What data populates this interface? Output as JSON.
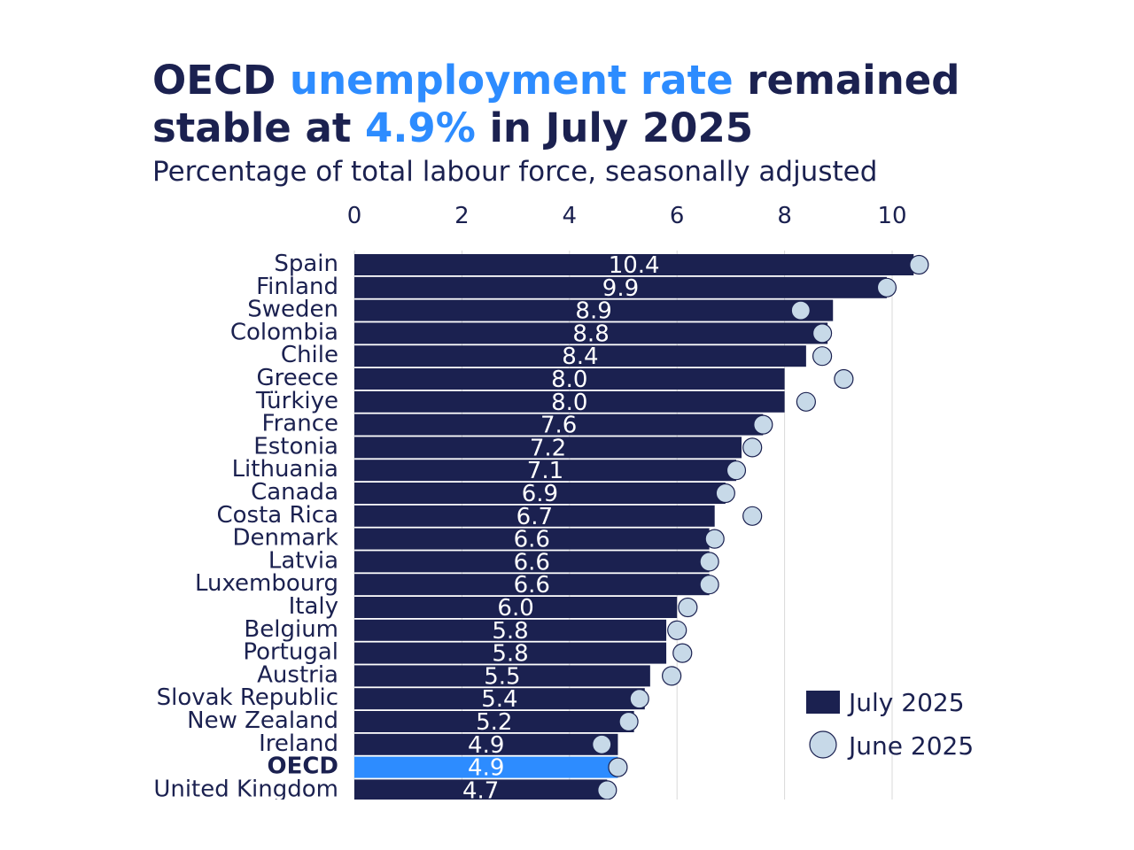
{
  "title": {
    "part1": "OECD ",
    "part2": "unemployment rate",
    "part3": " remained",
    "part4": "stable at ",
    "part5": "4.9%",
    "part6": " in July 2025"
  },
  "subtitle": "Percentage of total labour force, seasonally adjusted",
  "colors": {
    "bar": "#1b2150",
    "highlight_bar": "#2d8cff",
    "dot_fill": "#c7d9e8",
    "dot_stroke": "#1b2150",
    "grid": "#d9d9d9",
    "text": "#1b2150"
  },
  "chart_data": {
    "type": "bar",
    "orientation": "horizontal",
    "xlim": [
      0,
      10
    ],
    "xticks": [
      "0",
      "2",
      "4",
      "6",
      "8",
      "10"
    ],
    "legend": {
      "position": "bottom-right",
      "bar_label": "July 2025",
      "dot_label": "June 2025"
    },
    "highlight": "OECD",
    "categories": [
      "Spain",
      "Finland",
      "Sweden",
      "Colombia",
      "Chile",
      "Greece",
      "Türkiye",
      "France",
      "Estonia",
      "Lithuania",
      "Canada",
      "Costa Rica",
      "Denmark",
      "Latvia",
      "Luxembourg",
      "Italy",
      "Belgium",
      "Portugal",
      "Austria",
      "Slovak Republic",
      "New Zealand",
      "Ireland",
      "OECD",
      "United Kingdom"
    ],
    "series": [
      {
        "name": "July 2025",
        "values": [
          10.4,
          9.9,
          8.9,
          8.8,
          8.4,
          8.0,
          8.0,
          7.6,
          7.2,
          7.1,
          6.9,
          6.7,
          6.6,
          6.6,
          6.6,
          6.0,
          5.8,
          5.8,
          5.5,
          5.4,
          5.2,
          4.9,
          4.9,
          4.7
        ]
      },
      {
        "name": "June 2025",
        "values": [
          10.5,
          9.9,
          8.3,
          8.7,
          8.7,
          9.1,
          8.4,
          7.6,
          7.4,
          7.1,
          6.9,
          7.4,
          6.7,
          6.6,
          6.6,
          6.2,
          6.0,
          6.1,
          5.9,
          5.3,
          5.1,
          4.6,
          4.9,
          4.7
        ]
      }
    ],
    "value_labels": [
      "10.4",
      "9.9",
      "8.9",
      "8.8",
      "8.4",
      "8.0",
      "8.0",
      "7.6",
      "7.2",
      "7.1",
      "6.9",
      "6.7",
      "6.6",
      "6.6",
      "6.6",
      "6.0",
      "5.8",
      "5.8",
      "5.5",
      "5.4",
      "5.2",
      "4.9",
      "4.9",
      "4.7"
    ]
  }
}
